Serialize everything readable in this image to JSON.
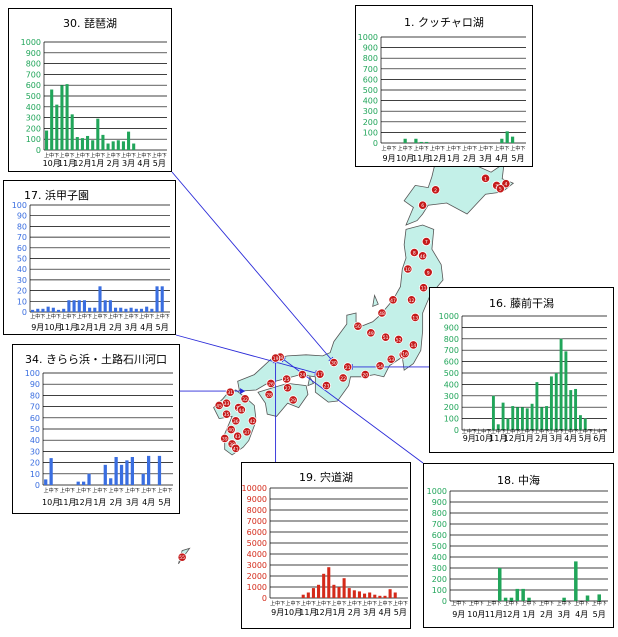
{
  "colors": {
    "green": "#21a55a",
    "blue": "#3a6ee0",
    "red": "#d42a1a",
    "land": "#c3f0e8",
    "landStroke": "#555555",
    "line": "#2a2ad8",
    "pin": "#c51a1a"
  },
  "halfLabel": "上中下",
  "map": {
    "markers": [
      {
        "id": "1",
        "lon": 144.3,
        "lat": 43.62
      },
      {
        "id": "2",
        "lon": 141.6,
        "lat": 43.1
      },
      {
        "id": "3",
        "lon": 144.9,
        "lat": 43.3
      },
      {
        "id": "4",
        "lon": 145.4,
        "lat": 43.38
      },
      {
        "id": "5",
        "lon": 145.1,
        "lat": 43.15
      },
      {
        "id": "6",
        "lon": 140.9,
        "lat": 42.4
      },
      {
        "id": "7",
        "lon": 141.1,
        "lat": 40.75
      },
      {
        "id": "8",
        "lon": 140.45,
        "lat": 40.25
      },
      {
        "id": "9",
        "lon": 141.2,
        "lat": 39.35
      },
      {
        "id": "10",
        "lon": 140.1,
        "lat": 39.5
      },
      {
        "id": "11",
        "lon": 140.95,
        "lat": 38.65
      },
      {
        "id": "12",
        "lon": 140.3,
        "lat": 38.1
      },
      {
        "id": "13",
        "lon": 140.5,
        "lat": 37.3
      },
      {
        "id": "14",
        "lon": 140.4,
        "lat": 36.05
      },
      {
        "id": "15",
        "lon": 139.85,
        "lat": 35.6
      },
      {
        "id": "16",
        "lon": 139.95,
        "lat": 35.65
      },
      {
        "id": "17",
        "lon": 135.35,
        "lat": 34.72
      },
      {
        "id": "18",
        "lon": 133.2,
        "lat": 35.5
      },
      {
        "id": "19",
        "lon": 132.95,
        "lat": 35.45
      },
      {
        "id": "20",
        "lon": 137.8,
        "lat": 34.7
      },
      {
        "id": "21",
        "lon": 136.85,
        "lat": 35.05
      },
      {
        "id": "22",
        "lon": 136.6,
        "lat": 34.55
      },
      {
        "id": "23",
        "lon": 135.7,
        "lat": 34.2
      },
      {
        "id": "24",
        "lon": 134.4,
        "lat": 34.7
      },
      {
        "id": "25",
        "lon": 133.55,
        "lat": 34.5
      },
      {
        "id": "26",
        "lon": 132.7,
        "lat": 34.3
      },
      {
        "id": "27",
        "lon": 133.6,
        "lat": 34.1
      },
      {
        "id": "28",
        "lon": 132.6,
        "lat": 33.8
      },
      {
        "id": "29",
        "lon": 133.9,
        "lat": 33.55
      },
      {
        "id": "30",
        "lon": 136.1,
        "lat": 35.25
      },
      {
        "id": "31",
        "lon": 130.5,
        "lat": 33.9
      },
      {
        "id": "32",
        "lon": 131.3,
        "lat": 33.6
      },
      {
        "id": "33",
        "lon": 130.3,
        "lat": 33.4
      },
      {
        "id": "34",
        "lon": 130.95,
        "lat": 33.2
      },
      {
        "id": "35",
        "lon": 130.3,
        "lat": 32.9
      },
      {
        "id": "36",
        "lon": 130.8,
        "lat": 32.6
      },
      {
        "id": "37",
        "lon": 131.4,
        "lat": 32.1
      },
      {
        "id": "38",
        "lon": 130.6,
        "lat": 31.55
      },
      {
        "id": "39",
        "lon": 130.2,
        "lat": 31.8
      },
      {
        "id": "40",
        "lon": 130.55,
        "lat": 32.2
      },
      {
        "id": "41",
        "lon": 130.8,
        "lat": 31.35
      },
      {
        "id": "42",
        "lon": 131.7,
        "lat": 32.6
      },
      {
        "id": "43",
        "lon": 130.9,
        "lat": 31.9
      },
      {
        "id": "44",
        "lon": 131.1,
        "lat": 33.1
      },
      {
        "id": "45",
        "lon": 129.9,
        "lat": 33.3
      },
      {
        "id": "46",
        "lon": 140.9,
        "lat": 40.1
      },
      {
        "id": "47",
        "lon": 139.3,
        "lat": 38.1
      },
      {
        "id": "48",
        "lon": 138.7,
        "lat": 37.5
      },
      {
        "id": "49",
        "lon": 138.1,
        "lat": 36.6
      },
      {
        "id": "50",
        "lon": 137.4,
        "lat": 36.9
      },
      {
        "id": "51",
        "lon": 138.9,
        "lat": 36.4
      },
      {
        "id": "52",
        "lon": 139.6,
        "lat": 36.3
      },
      {
        "id": "53",
        "lon": 139.2,
        "lat": 35.4
      },
      {
        "id": "54",
        "lon": 138.6,
        "lat": 35.1
      },
      {
        "id": "55",
        "lon": 127.9,
        "lat": 26.4
      }
    ]
  },
  "panels": [
    {
      "key": "p30",
      "title": "30. 琵琶湖",
      "color": "green",
      "yticks": [
        0,
        100,
        200,
        300,
        400,
        500,
        600,
        700,
        800,
        900,
        1000
      ],
      "ymax": 1000,
      "months": [
        "10月",
        "11月",
        "12月",
        "1月",
        "2月",
        "3月",
        "4月",
        "5月"
      ],
      "pointer": {
        "lon": 136.1,
        "lat": 35.25
      },
      "chart_data": {
        "type": "bar",
        "values": [
          180,
          560,
          420,
          600,
          610,
          330,
          120,
          110,
          130,
          90,
          290,
          140,
          60,
          80,
          90,
          80,
          170,
          60,
          0,
          0,
          0,
          0,
          0,
          0
        ]
      }
    },
    {
      "key": "p1",
      "title": "1. クッチャロ湖",
      "color": "green",
      "yticks": [
        0,
        100,
        200,
        300,
        400,
        500,
        600,
        700,
        800,
        900,
        1000
      ],
      "ymax": 1000,
      "months": [
        "9月",
        "10月",
        "11月",
        "12月",
        "1月",
        "2月",
        "3月",
        "4月",
        "5月"
      ],
      "pointer": {
        "lon": 142.3,
        "lat": 45.2
      },
      "chart_data": {
        "type": "bar",
        "values": [
          0,
          0,
          0,
          0,
          40,
          0,
          40,
          10,
          10,
          0,
          0,
          0,
          0,
          0,
          0,
          0,
          0,
          0,
          0,
          0,
          0,
          0,
          40,
          110,
          60,
          0,
          0
        ]
      }
    },
    {
      "key": "p17",
      "title": "17. 浜甲子園",
      "color": "blue",
      "yticks": [
        0,
        10,
        20,
        30,
        40,
        50,
        60,
        70,
        80,
        90,
        100
      ],
      "ymax": 100,
      "months": [
        "9月",
        "10月",
        "11月",
        "12月",
        "1月",
        "2月",
        "3月",
        "4月",
        "5月"
      ],
      "pointer": {
        "lon": 135.35,
        "lat": 34.72
      },
      "chart_data": {
        "type": "bar",
        "values": [
          2,
          3,
          3,
          5,
          4,
          2,
          3,
          11,
          11,
          11,
          11,
          4,
          4,
          24,
          11,
          11,
          4,
          4,
          3,
          4,
          3,
          3,
          5,
          3,
          24,
          24,
          0
        ]
      }
    },
    {
      "key": "p16",
      "title": "16. 藤前干潟",
      "color": "green",
      "yticks": [
        0,
        100,
        200,
        300,
        400,
        500,
        600,
        700,
        800,
        900,
        1000
      ],
      "ymax": 1000,
      "months": [
        "9月",
        "10月",
        "11月",
        "12月",
        "1月",
        "2月",
        "3月",
        "4月",
        "5月",
        "6月"
      ],
      "pointer": {
        "lon": 136.85,
        "lat": 35.05
      },
      "chart_data": {
        "type": "bar",
        "values": [
          0,
          0,
          0,
          0,
          0,
          0,
          300,
          50,
          240,
          100,
          210,
          200,
          200,
          190,
          230,
          420,
          200,
          210,
          470,
          500,
          800,
          690,
          350,
          360,
          130,
          100,
          0,
          0,
          0,
          0
        ]
      }
    },
    {
      "key": "p34",
      "title": "34. きらら浜・土路石川河口",
      "color": "blue",
      "yticks": [
        0,
        10,
        20,
        30,
        40,
        50,
        60,
        70,
        80,
        90,
        100
      ],
      "ymax": 100,
      "months": [
        "10月",
        "11月",
        "12月",
        "1月",
        "2月",
        "3月",
        "4月",
        "5月"
      ],
      "pointer": {
        "lon": 131.3,
        "lat": 33.95
      },
      "chart_data": {
        "type": "bar",
        "values": [
          5,
          24,
          0,
          0,
          0,
          0,
          3,
          3,
          10,
          0,
          0,
          18,
          6,
          25,
          18,
          22,
          25,
          0,
          10,
          26,
          0,
          26,
          0,
          0
        ]
      }
    },
    {
      "key": "p19",
      "title": "19. 宍道湖",
      "color": "red",
      "yticks": [
        0,
        1000,
        2000,
        3000,
        4000,
        5000,
        6000,
        7000,
        8000,
        9000,
        10000
      ],
      "ymax": 10000,
      "months": [
        "9月",
        "10月",
        "11月",
        "12月",
        "1月",
        "2月",
        "3月",
        "4月",
        "5月"
      ],
      "pointer": {
        "lon": 132.95,
        "lat": 35.45
      },
      "chart_data": {
        "type": "bar",
        "values": [
          0,
          0,
          0,
          0,
          0,
          0,
          300,
          500,
          900,
          1200,
          2200,
          2800,
          1200,
          1000,
          1800,
          900,
          700,
          600,
          400,
          500,
          300,
          200,
          200,
          800,
          500,
          0,
          0
        ]
      }
    },
    {
      "key": "p18",
      "title": "18. 中海",
      "color": "green",
      "yticks": [
        0,
        100,
        200,
        300,
        400,
        500,
        600,
        700,
        800,
        900,
        1000
      ],
      "ymax": 1000,
      "months": [
        "9月",
        "10月",
        "11月",
        "12月",
        "1月",
        "2月",
        "3月",
        "4月",
        "5月"
      ],
      "pointer": {
        "lon": 133.2,
        "lat": 35.5
      },
      "chart_data": {
        "type": "bar",
        "values": [
          0,
          0,
          0,
          0,
          0,
          0,
          0,
          0,
          300,
          30,
          30,
          110,
          110,
          30,
          0,
          0,
          0,
          0,
          0,
          30,
          0,
          360,
          0,
          50,
          0,
          60,
          0
        ]
      }
    }
  ]
}
